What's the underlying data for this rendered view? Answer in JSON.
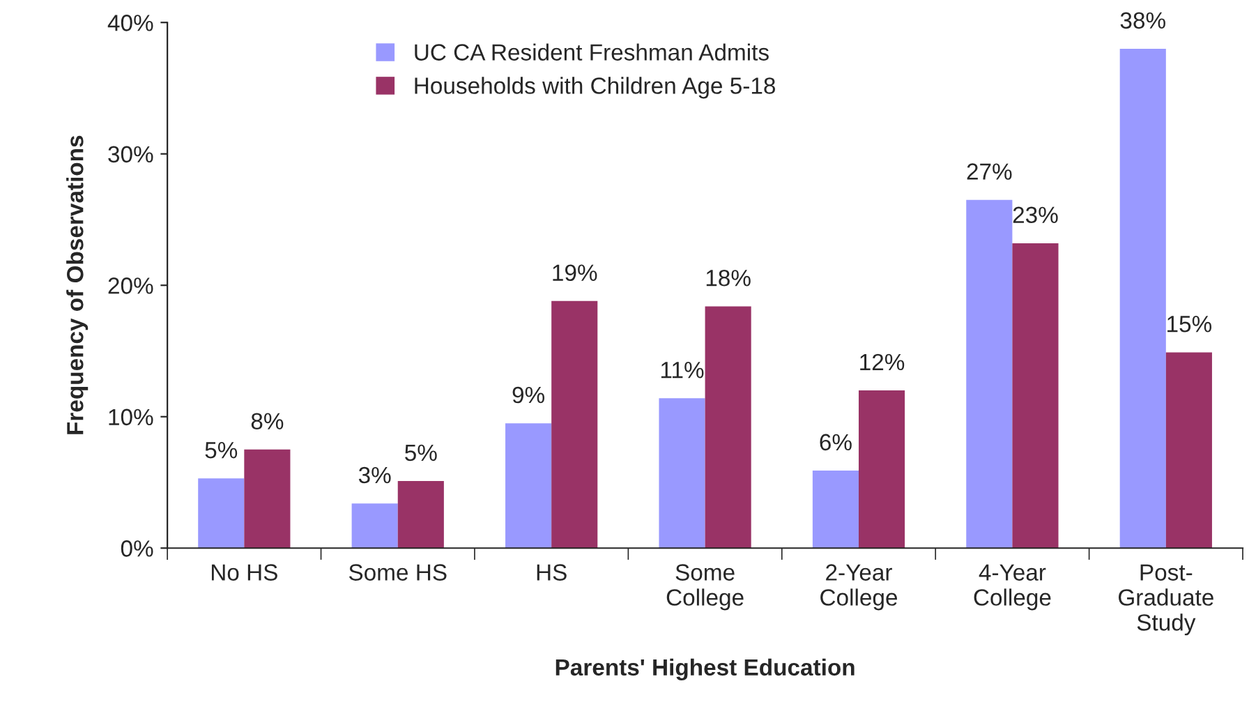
{
  "chart_data": {
    "type": "bar",
    "xlabel": "Parents' Highest Education",
    "ylabel": "Frequency of Observations",
    "categories": [
      "No HS",
      "Some HS",
      "HS",
      "Some\nCollege",
      "2-Year\nCollege",
      "4-Year\nCollege",
      "Post-\nGraduate\nStudy"
    ],
    "series": [
      {
        "name": "UC CA Resident Freshman Admits",
        "color": "#9999ff",
        "values": [
          5.3,
          3.4,
          9.5,
          11.4,
          5.9,
          26.5,
          38.0
        ],
        "value_labels": [
          "5%",
          "3%",
          "9%",
          "11%",
          "6%",
          "27%",
          "38%"
        ]
      },
      {
        "name": "Households with Children Age 5-18",
        "color": "#993366",
        "values": [
          7.5,
          5.1,
          18.8,
          18.4,
          12.0,
          23.2,
          14.9
        ],
        "value_labels": [
          "8%",
          "5%",
          "19%",
          "18%",
          "12%",
          "23%",
          "15%"
        ]
      }
    ],
    "ylim": [
      0,
      40
    ],
    "yticks": [
      {
        "value": 0,
        "label": "0%"
      },
      {
        "value": 10,
        "label": "10%"
      },
      {
        "value": 20,
        "label": "20%"
      },
      {
        "value": 30,
        "label": "30%"
      },
      {
        "value": 40,
        "label": "40%"
      }
    ],
    "grid": false,
    "legend": "top"
  }
}
